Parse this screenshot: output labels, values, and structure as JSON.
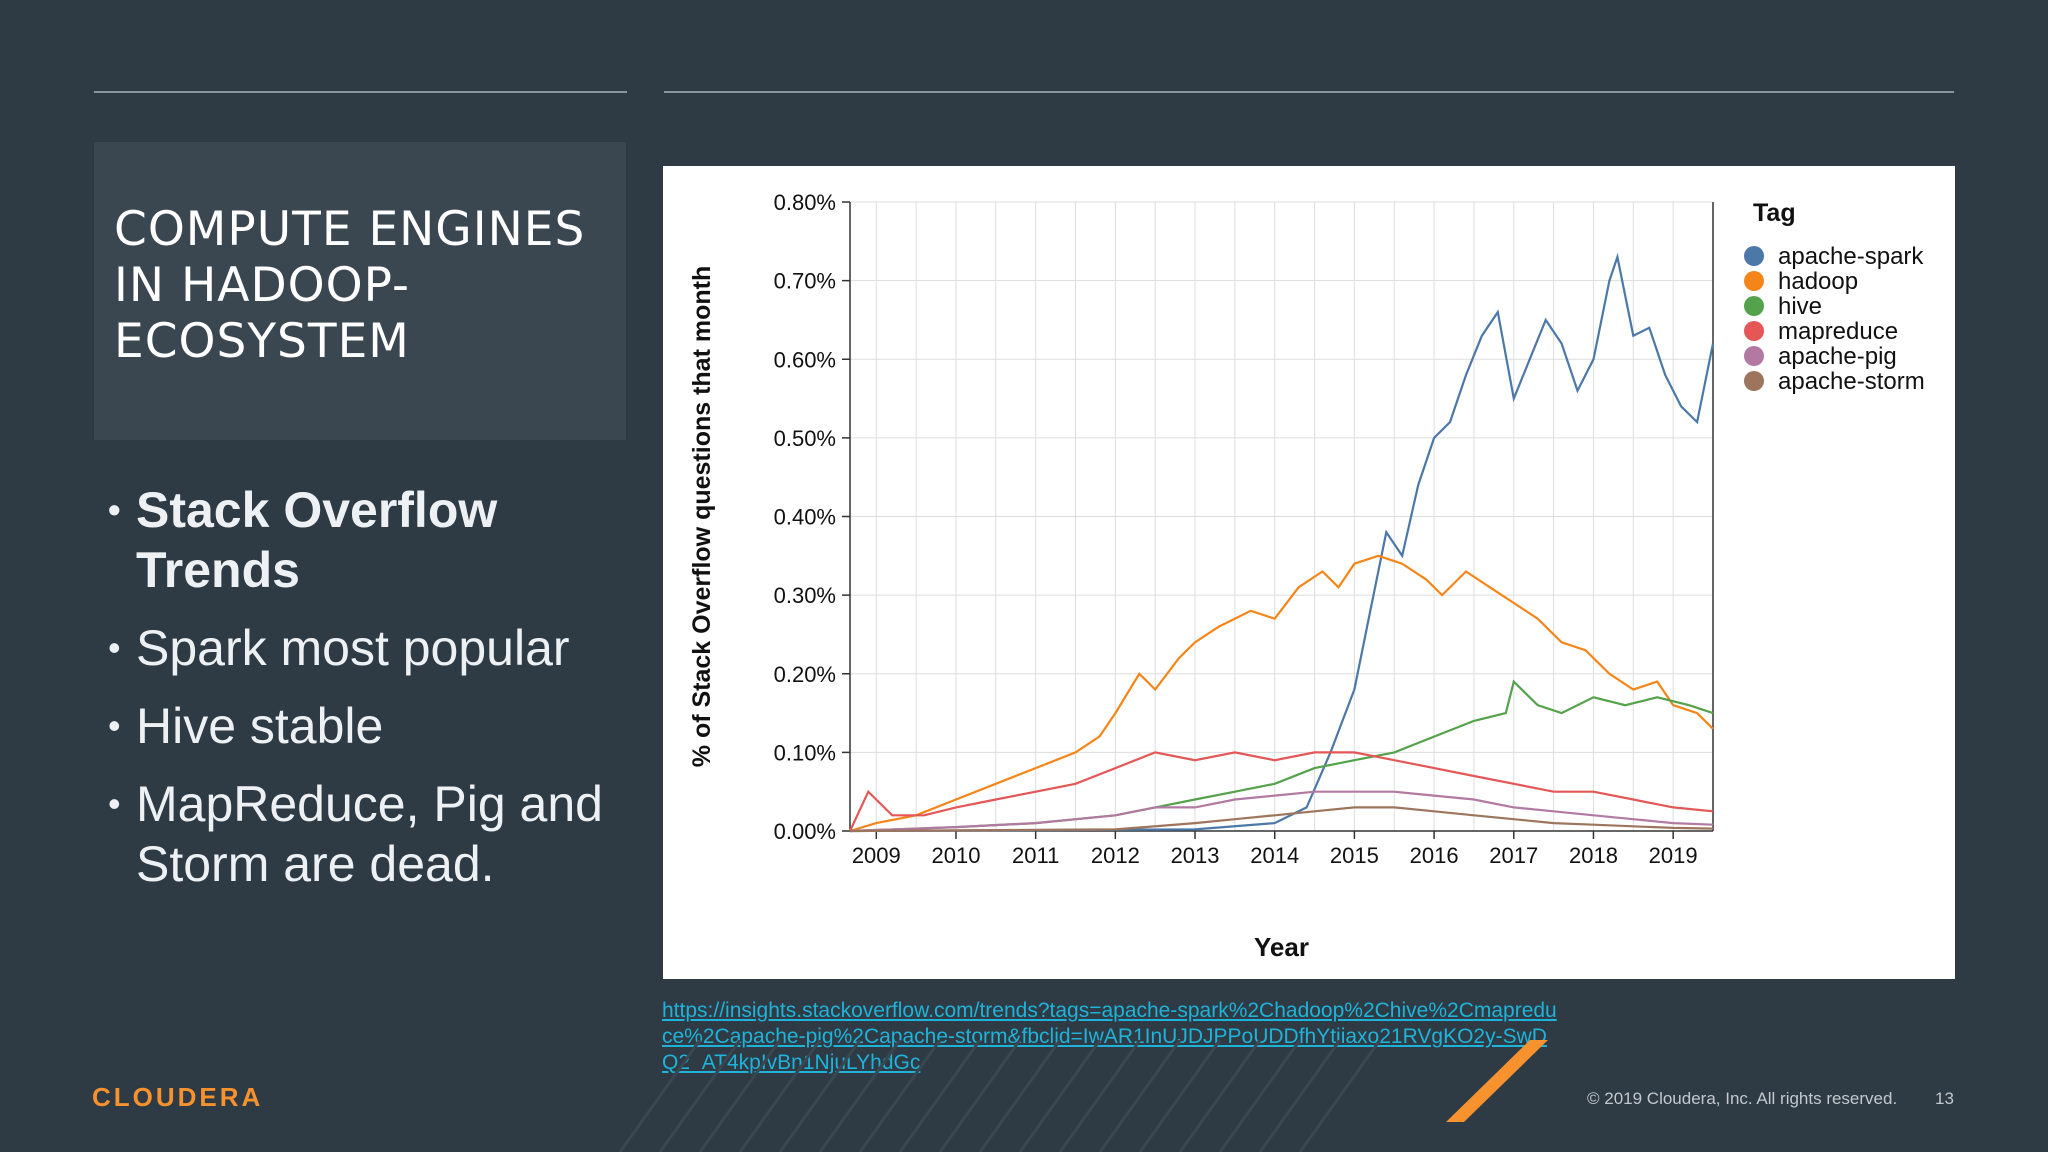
{
  "slide": {
    "title": "COMPUTE ENGINES IN HADOOP-ECOSYSTEM",
    "bullets": [
      {
        "text": "Stack Overflow Trends",
        "bold": true
      },
      {
        "text": "Spark most popular",
        "bold": false
      },
      {
        "text": "Hive stable",
        "bold": false
      },
      {
        "text": "MapReduce, Pig and Storm are dead.",
        "bold": false
      }
    ],
    "source_url": "https://insights.stackoverflow.com/trends?tags=apache-spark%2Chadoop%2Chive%2Cmapreduce%2Capache-pig%2Capache-storm&fbclid=IwAR1InUJDJPPoUDDfhYtiiaxo21RVgKO2y-SwDQ2_AT4kpIvBn1NjuLYhdGc",
    "logo": "CLOUDERA",
    "copyright": "© 2019 Cloudera, Inc. All rights reserved.",
    "page_number": "13",
    "colors": {
      "background": "#2e3a44",
      "accent": "#f7922e",
      "link": "#1fb3d9"
    }
  },
  "chart_data": {
    "type": "line",
    "xlabel": "Year",
    "ylabel": "% of Stack Overflow questions that month",
    "x_range": [
      2008.67,
      2019.5
    ],
    "ylim": [
      0,
      0.8
    ],
    "y_ticks": [
      0,
      0.1,
      0.2,
      0.3,
      0.4,
      0.5,
      0.6,
      0.7,
      0.8
    ],
    "y_tick_labels": [
      "0.00%",
      "0.10%",
      "0.20%",
      "0.30%",
      "0.40%",
      "0.50%",
      "0.60%",
      "0.70%",
      "0.80%"
    ],
    "x_ticks": [
      2009,
      2010,
      2011,
      2012,
      2013,
      2014,
      2015,
      2016,
      2017,
      2018,
      2019
    ],
    "x_tick_labels": [
      "2009",
      "2010",
      "2011",
      "2012",
      "2013",
      "2014",
      "2015",
      "2016",
      "2017",
      "2018",
      "2019"
    ],
    "grid": true,
    "legend_title": "Tag",
    "legend_position": "right",
    "series": [
      {
        "name": "apache-spark",
        "color": "#4c78a8",
        "points": [
          [
            2008.67,
            0
          ],
          [
            2013.0,
            0.002
          ],
          [
            2014.0,
            0.01
          ],
          [
            2014.4,
            0.03
          ],
          [
            2014.7,
            0.1
          ],
          [
            2015.0,
            0.18
          ],
          [
            2015.2,
            0.28
          ],
          [
            2015.4,
            0.38
          ],
          [
            2015.6,
            0.35
          ],
          [
            2015.8,
            0.44
          ],
          [
            2016.0,
            0.5
          ],
          [
            2016.2,
            0.52
          ],
          [
            2016.4,
            0.58
          ],
          [
            2016.6,
            0.63
          ],
          [
            2016.8,
            0.66
          ],
          [
            2017.0,
            0.55
          ],
          [
            2017.2,
            0.6
          ],
          [
            2017.4,
            0.65
          ],
          [
            2017.6,
            0.62
          ],
          [
            2017.8,
            0.56
          ],
          [
            2018.0,
            0.6
          ],
          [
            2018.2,
            0.7
          ],
          [
            2018.3,
            0.73
          ],
          [
            2018.5,
            0.63
          ],
          [
            2018.7,
            0.64
          ],
          [
            2018.9,
            0.58
          ],
          [
            2019.1,
            0.54
          ],
          [
            2019.3,
            0.52
          ],
          [
            2019.5,
            0.62
          ]
        ]
      },
      {
        "name": "hadoop",
        "color": "#f58518",
        "points": [
          [
            2008.67,
            0
          ],
          [
            2009.0,
            0.01
          ],
          [
            2009.5,
            0.02
          ],
          [
            2010.0,
            0.04
          ],
          [
            2010.5,
            0.06
          ],
          [
            2011.0,
            0.08
          ],
          [
            2011.5,
            0.1
          ],
          [
            2011.8,
            0.12
          ],
          [
            2012.0,
            0.15
          ],
          [
            2012.3,
            0.2
          ],
          [
            2012.5,
            0.18
          ],
          [
            2012.8,
            0.22
          ],
          [
            2013.0,
            0.24
          ],
          [
            2013.3,
            0.26
          ],
          [
            2013.7,
            0.28
          ],
          [
            2014.0,
            0.27
          ],
          [
            2014.3,
            0.31
          ],
          [
            2014.6,
            0.33
          ],
          [
            2014.8,
            0.31
          ],
          [
            2015.0,
            0.34
          ],
          [
            2015.3,
            0.35
          ],
          [
            2015.6,
            0.34
          ],
          [
            2015.9,
            0.32
          ],
          [
            2016.1,
            0.3
          ],
          [
            2016.4,
            0.33
          ],
          [
            2016.7,
            0.31
          ],
          [
            2017.0,
            0.29
          ],
          [
            2017.3,
            0.27
          ],
          [
            2017.6,
            0.24
          ],
          [
            2017.9,
            0.23
          ],
          [
            2018.2,
            0.2
          ],
          [
            2018.5,
            0.18
          ],
          [
            2018.8,
            0.19
          ],
          [
            2019.0,
            0.16
          ],
          [
            2019.3,
            0.15
          ],
          [
            2019.5,
            0.13
          ]
        ]
      },
      {
        "name": "hive",
        "color": "#54a24b",
        "points": [
          [
            2008.67,
            0
          ],
          [
            2010.0,
            0.005
          ],
          [
            2011.0,
            0.01
          ],
          [
            2012.0,
            0.02
          ],
          [
            2012.5,
            0.03
          ],
          [
            2013.0,
            0.04
          ],
          [
            2013.5,
            0.05
          ],
          [
            2014.0,
            0.06
          ],
          [
            2014.5,
            0.08
          ],
          [
            2015.0,
            0.09
          ],
          [
            2015.5,
            0.1
          ],
          [
            2016.0,
            0.12
          ],
          [
            2016.5,
            0.14
          ],
          [
            2016.9,
            0.15
          ],
          [
            2017.0,
            0.19
          ],
          [
            2017.3,
            0.16
          ],
          [
            2017.6,
            0.15
          ],
          [
            2018.0,
            0.17
          ],
          [
            2018.4,
            0.16
          ],
          [
            2018.8,
            0.17
          ],
          [
            2019.2,
            0.16
          ],
          [
            2019.5,
            0.15
          ]
        ]
      },
      {
        "name": "mapreduce",
        "color": "#e45756",
        "points": [
          [
            2008.67,
            0
          ],
          [
            2008.9,
            0.05
          ],
          [
            2009.2,
            0.02
          ],
          [
            2009.6,
            0.02
          ],
          [
            2010.0,
            0.03
          ],
          [
            2010.5,
            0.04
          ],
          [
            2011.0,
            0.05
          ],
          [
            2011.5,
            0.06
          ],
          [
            2012.0,
            0.08
          ],
          [
            2012.5,
            0.1
          ],
          [
            2013.0,
            0.09
          ],
          [
            2013.5,
            0.1
          ],
          [
            2014.0,
            0.09
          ],
          [
            2014.5,
            0.1
          ],
          [
            2015.0,
            0.1
          ],
          [
            2015.5,
            0.09
          ],
          [
            2016.0,
            0.08
          ],
          [
            2016.5,
            0.07
          ],
          [
            2017.0,
            0.06
          ],
          [
            2017.5,
            0.05
          ],
          [
            2018.0,
            0.05
          ],
          [
            2018.5,
            0.04
          ],
          [
            2019.0,
            0.03
          ],
          [
            2019.5,
            0.025
          ]
        ]
      },
      {
        "name": "apache-pig",
        "color": "#b279a2",
        "points": [
          [
            2008.67,
            0
          ],
          [
            2010.0,
            0.005
          ],
          [
            2011.0,
            0.01
          ],
          [
            2012.0,
            0.02
          ],
          [
            2012.5,
            0.03
          ],
          [
            2013.0,
            0.03
          ],
          [
            2013.5,
            0.04
          ],
          [
            2014.0,
            0.045
          ],
          [
            2014.5,
            0.05
          ],
          [
            2015.0,
            0.05
          ],
          [
            2015.5,
            0.05
          ],
          [
            2016.0,
            0.045
          ],
          [
            2016.5,
            0.04
          ],
          [
            2017.0,
            0.03
          ],
          [
            2017.5,
            0.025
          ],
          [
            2018.0,
            0.02
          ],
          [
            2018.5,
            0.015
          ],
          [
            2019.0,
            0.01
          ],
          [
            2019.5,
            0.008
          ]
        ]
      },
      {
        "name": "apache-storm",
        "color": "#9d755d",
        "points": [
          [
            2008.67,
            0
          ],
          [
            2012.0,
            0.002
          ],
          [
            2013.0,
            0.01
          ],
          [
            2013.5,
            0.015
          ],
          [
            2014.0,
            0.02
          ],
          [
            2014.5,
            0.025
          ],
          [
            2015.0,
            0.03
          ],
          [
            2015.5,
            0.03
          ],
          [
            2016.0,
            0.025
          ],
          [
            2016.5,
            0.02
          ],
          [
            2017.0,
            0.015
          ],
          [
            2017.5,
            0.01
          ],
          [
            2018.0,
            0.008
          ],
          [
            2018.5,
            0.006
          ],
          [
            2019.0,
            0.004
          ],
          [
            2019.5,
            0.003
          ]
        ]
      }
    ]
  }
}
